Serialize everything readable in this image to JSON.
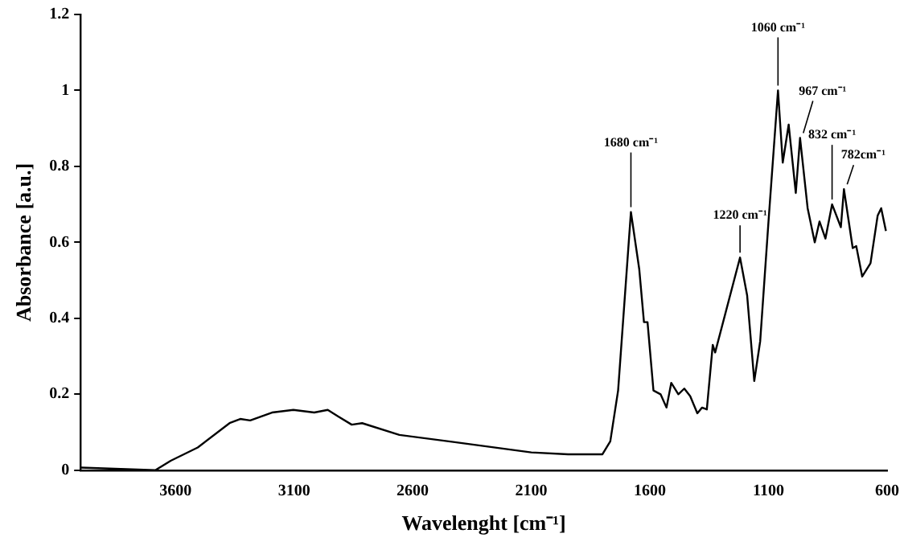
{
  "chart_data": {
    "type": "line",
    "xlabel": "Wavelenght [cm⁻¹]",
    "ylabel": "Absorbance [a.u.]",
    "xlim": [
      4000,
      600
    ],
    "xticks": [
      3600,
      3100,
      2600,
      2100,
      1600,
      1100,
      600
    ],
    "ylim": [
      0,
      1.2
    ],
    "yticks": [
      0,
      0.2,
      0.4,
      0.6,
      0.8,
      1,
      1.2
    ],
    "grid": false,
    "legend": false,
    "marker": "none",
    "line_style": "solid",
    "series": [
      {
        "color": "#000000",
        "x": [
          4000,
          3685,
          3620,
          3506,
          3372,
          3327,
          3285,
          3193,
          3103,
          3015,
          2958,
          2915,
          2857,
          2813,
          2656,
          2435,
          2100,
          1945,
          1800,
          1767,
          1734,
          1680,
          1645,
          1625,
          1610,
          1585,
          1555,
          1530,
          1510,
          1480,
          1455,
          1430,
          1400,
          1380,
          1360,
          1335,
          1325,
          1220,
          1190,
          1160,
          1135,
          1100,
          1060,
          1040,
          1015,
          985,
          967,
          935,
          905,
          885,
          860,
          832,
          795,
          782,
          745,
          730,
          705,
          670,
          640,
          625,
          605
        ],
        "values": [
          0.007,
          0,
          0.025,
          0.06,
          0.124,
          0.135,
          0.131,
          0.152,
          0.159,
          0.152,
          0.159,
          0.142,
          0.12,
          0.124,
          0.093,
          0.075,
          0.047,
          0.042,
          0.042,
          0.076,
          0.21,
          0.68,
          0.53,
          0.39,
          0.39,
          0.21,
          0.2,
          0.165,
          0.23,
          0.2,
          0.215,
          0.195,
          0.15,
          0.165,
          0.16,
          0.33,
          0.31,
          0.56,
          0.46,
          0.235,
          0.34,
          0.655,
          1.0,
          0.81,
          0.91,
          0.73,
          0.875,
          0.69,
          0.6,
          0.655,
          0.61,
          0.7,
          0.64,
          0.74,
          0.585,
          0.59,
          0.51,
          0.545,
          0.67,
          0.69,
          0.63
        ]
      }
    ],
    "annotations": [
      {
        "text": "1680 cm⁻¹",
        "x": 1680,
        "y": 0.68
      },
      {
        "text": "1220 cm⁻¹",
        "x": 1220,
        "y": 0.56
      },
      {
        "text": "1060 cm⁻¹",
        "x": 1060,
        "y": 1.0
      },
      {
        "text": "967 cm⁻¹",
        "x": 967,
        "y": 0.875
      },
      {
        "text": "832 cm⁻¹",
        "x": 832,
        "y": 0.7
      },
      {
        "text": "782cm⁻¹",
        "x": 782,
        "y": 0.74
      }
    ]
  }
}
